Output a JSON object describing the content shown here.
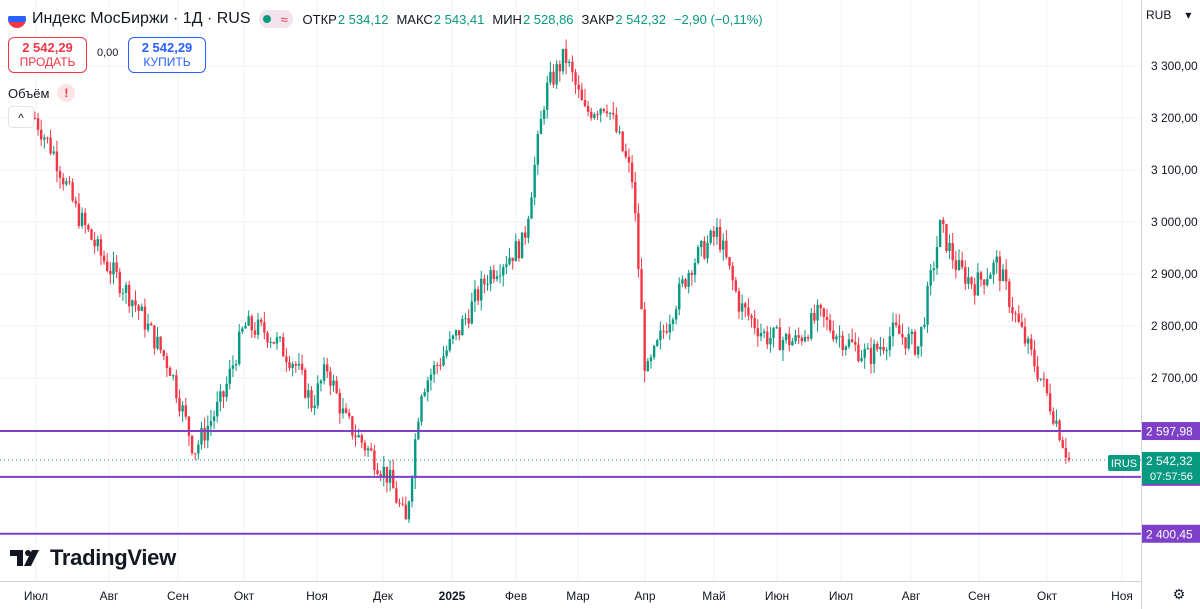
{
  "header": {
    "title": "Индекс МосБиржи · 1Д · RUS",
    "open_label": "ОТКР",
    "open": "2 534,12",
    "high_label": "МАКС",
    "high": "2 543,41",
    "low_label": "МИН",
    "low": "2 528,86",
    "close_label": "ЗАКР",
    "close": "2 542,32",
    "change": "−2,90 (−0,11%)"
  },
  "trade": {
    "sell_price": "2 542,29",
    "sell_label": "ПРОДАТЬ",
    "spread": "0,00",
    "buy_price": "2 542,29",
    "buy_label": "КУПИТЬ"
  },
  "volume_label": "Объём",
  "currency": "RUB",
  "logo_text": "TradingView",
  "colors": {
    "up": "#089981",
    "down": "#f23645",
    "level": "#7e3fc9",
    "text": "#131722"
  },
  "chart_data": {
    "type": "candlestick",
    "y_axis_ticks": [
      "3 300,00",
      "3 200,00",
      "3 100,00",
      "3 000,00",
      "2 900,00",
      "2 800,00",
      "2 700,00"
    ],
    "y_axis_values": [
      3300,
      3200,
      3100,
      3000,
      2900,
      2800,
      2700
    ],
    "x_axis_ticks": [
      "Июл",
      "Авг",
      "Сен",
      "Окт",
      "Ноя",
      "Дек",
      "2025",
      "Фев",
      "Мар",
      "Апр",
      "Май",
      "Июн",
      "Июл",
      "Авг",
      "Сен",
      "Окт",
      "Ноя"
    ],
    "horizontal_levels": [
      {
        "label": "2 597,98",
        "value": 2597.98
      },
      {
        "label": "2 509,95",
        "value": 2509.95
      },
      {
        "label": "2 400,45",
        "value": 2400.45
      }
    ],
    "last_price": {
      "symbol": "IRUS",
      "label": "2 542,32",
      "value": 2542.32,
      "countdown": "07:57:56"
    },
    "close_path": [
      {
        "m": "2024-07-01",
        "c": 3200
      },
      {
        "m": "2024-07-10",
        "c": 3130
      },
      {
        "m": "2024-07-20",
        "c": 3020
      },
      {
        "m": "2024-08-01",
        "c": 2930
      },
      {
        "m": "2024-08-15",
        "c": 2850
      },
      {
        "m": "2024-09-01",
        "c": 2720
      },
      {
        "m": "2024-09-12",
        "c": 2560
      },
      {
        "m": "2024-09-25",
        "c": 2660
      },
      {
        "m": "2024-10-05",
        "c": 2800
      },
      {
        "m": "2024-10-15",
        "c": 2790
      },
      {
        "m": "2024-10-28",
        "c": 2730
      },
      {
        "m": "2024-11-05",
        "c": 2650
      },
      {
        "m": "2024-11-12",
        "c": 2720
      },
      {
        "m": "2024-11-20",
        "c": 2620
      },
      {
        "m": "2024-12-01",
        "c": 2560
      },
      {
        "m": "2024-12-10",
        "c": 2510
      },
      {
        "m": "2024-12-18",
        "c": 2420
      },
      {
        "m": "2024-12-25",
        "c": 2680
      },
      {
        "m": "2025-01-10",
        "c": 2780
      },
      {
        "m": "2025-01-25",
        "c": 2900
      },
      {
        "m": "2025-02-10",
        "c": 2960
      },
      {
        "m": "2025-02-20",
        "c": 3250
      },
      {
        "m": "2025-03-01",
        "c": 3320
      },
      {
        "m": "2025-03-10",
        "c": 3210
      },
      {
        "m": "2025-03-20",
        "c": 3230
      },
      {
        "m": "2025-04-01",
        "c": 3080
      },
      {
        "m": "2025-04-07",
        "c": 2700
      },
      {
        "m": "2025-04-15",
        "c": 2790
      },
      {
        "m": "2025-04-28",
        "c": 2920
      },
      {
        "m": "2025-05-10",
        "c": 2980
      },
      {
        "m": "2025-05-20",
        "c": 2840
      },
      {
        "m": "2025-06-01",
        "c": 2780
      },
      {
        "m": "2025-06-15",
        "c": 2770
      },
      {
        "m": "2025-06-25",
        "c": 2820
      },
      {
        "m": "2025-07-05",
        "c": 2780
      },
      {
        "m": "2025-07-18",
        "c": 2740
      },
      {
        "m": "2025-07-30",
        "c": 2790
      },
      {
        "m": "2025-08-10",
        "c": 2760
      },
      {
        "m": "2025-08-20",
        "c": 2990
      },
      {
        "m": "2025-08-28",
        "c": 2910
      },
      {
        "m": "2025-09-05",
        "c": 2880
      },
      {
        "m": "2025-09-15",
        "c": 2920
      },
      {
        "m": "2025-09-25",
        "c": 2800
      },
      {
        "m": "2025-10-05",
        "c": 2700
      },
      {
        "m": "2025-10-12",
        "c": 2620
      },
      {
        "m": "2025-10-18",
        "c": 2542
      }
    ]
  }
}
